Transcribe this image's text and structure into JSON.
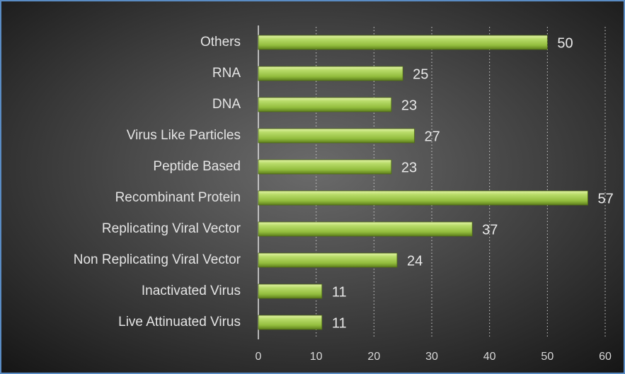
{
  "chart_data": {
    "type": "bar",
    "orientation": "horizontal",
    "categories": [
      "Others",
      "RNA",
      "DNA",
      "Virus Like Particles",
      "Peptide Based",
      "Recombinant Protein",
      "Replicating Viral Vector",
      "Non Replicating Viral Vector",
      "Inactivated Virus",
      "Live Attinuated Virus"
    ],
    "values": [
      50,
      25,
      23,
      27,
      23,
      57,
      37,
      24,
      11,
      11
    ],
    "color": "#9cc545",
    "xlim": [
      0,
      60
    ],
    "xticks": [
      0,
      10,
      20,
      30,
      40,
      50,
      60
    ],
    "grid": true
  }
}
